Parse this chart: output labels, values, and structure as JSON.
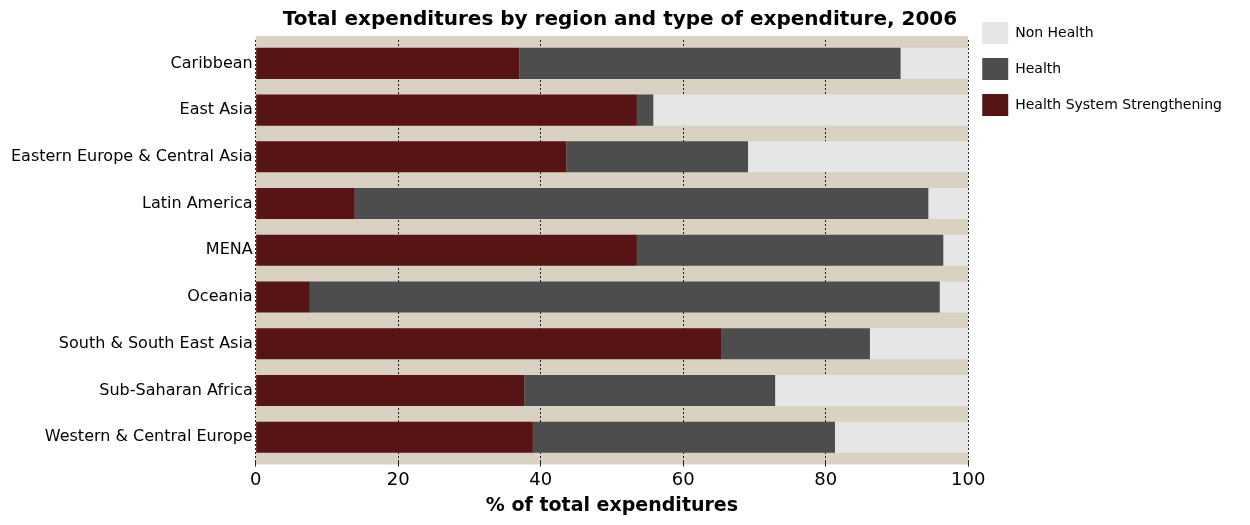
{
  "chart_data": {
    "type": "bar",
    "orientation": "horizontal",
    "stacked": true,
    "title": "Total expenditures by region and type of expenditure, 2006",
    "xlabel": "% of total expenditures",
    "categories": [
      "Caribbean",
      "East Asia",
      "Eastern Europe & Central Asia",
      "Latin America",
      "MENA",
      "Oceania",
      "South & South East Asia",
      "Sub-Saharan Africa",
      "Western & Central Europe"
    ],
    "series": [
      {
        "name": "Health System Strengthening",
        "color": "#561414",
        "values": [
          37,
          53.5,
          43.6,
          13.9,
          53.5,
          7.6,
          65.4,
          37.7,
          38.9
        ]
      },
      {
        "name": "Health",
        "color": "#4d4d4d",
        "values": [
          53.5,
          2.3,
          25.5,
          80.5,
          43,
          88.4,
          20.8,
          35.2,
          42.4
        ]
      },
      {
        "name": "Non Health",
        "color": "#e6e6e6",
        "values": [
          9.5,
          44.2,
          30.9,
          5.6,
          3.5,
          4,
          13.8,
          27.1,
          18.7
        ]
      }
    ],
    "xlim": [
      0,
      100
    ],
    "xticks": [
      0,
      20,
      40,
      60,
      80,
      100
    ],
    "grid": "x",
    "legend": "right"
  }
}
